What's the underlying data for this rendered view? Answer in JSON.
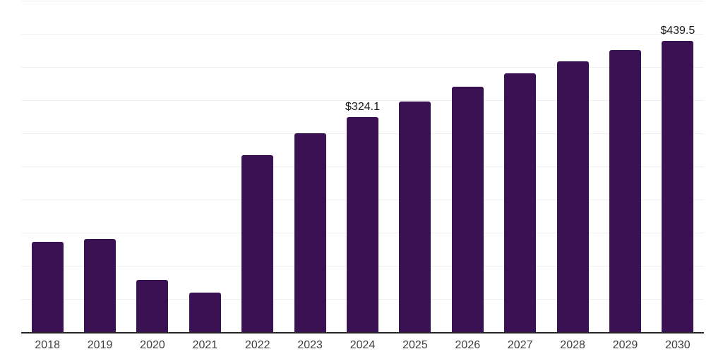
{
  "chart_data": {
    "type": "bar",
    "title": "",
    "xlabel": "",
    "ylabel": "",
    "categories": [
      "2018",
      "2019",
      "2020",
      "2021",
      "2022",
      "2023",
      "2024",
      "2025",
      "2026",
      "2027",
      "2028",
      "2029",
      "2030"
    ],
    "values": [
      136.2,
      140.4,
      78.7,
      59.6,
      267.0,
      300.5,
      324.1,
      347.9,
      370.2,
      390.4,
      408.5,
      425.5,
      439.5
    ],
    "labeled_points": [
      {
        "category": "2024",
        "label": "$324.1"
      },
      {
        "category": "2030",
        "label": "$439.5"
      }
    ],
    "ylim": [
      0,
      500
    ],
    "gridline_step": 50,
    "grid": true,
    "legend": false,
    "bar_color": "#3A1153",
    "gridline_color": "#f0f0f0",
    "axis_line_color": "#262626",
    "tick_label_color": "#404040",
    "value_label_color": "#1a1a1a"
  }
}
